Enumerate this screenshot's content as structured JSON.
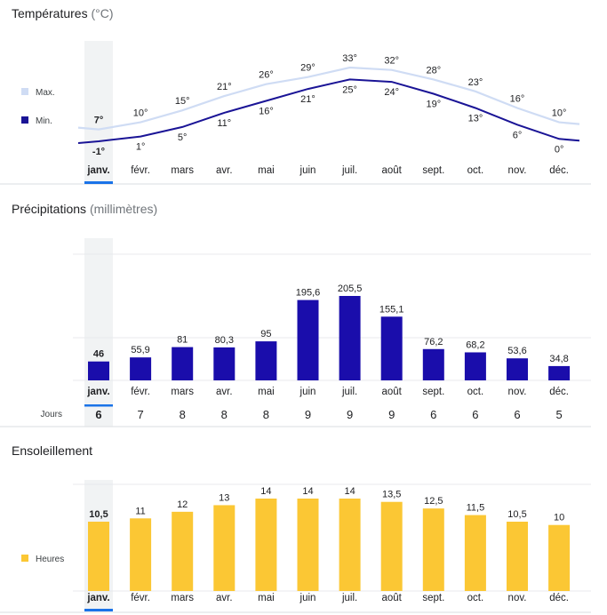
{
  "months": [
    "janv.",
    "févr.",
    "mars",
    "avr.",
    "mai",
    "juin",
    "juil.",
    "août",
    "sept.",
    "oct.",
    "nov.",
    "déc."
  ],
  "selected_month_index": 0,
  "colors": {
    "max_line": "#cfdcf4",
    "min_line": "#1a1496",
    "precip_bar": "#1a0dab",
    "sun_bar": "#fbc734",
    "selection_bg": "#f1f3f4",
    "selection_underline": "#1a73e8"
  },
  "temperature": {
    "title": "Températures",
    "unit": "(°C)",
    "legend_max": "Max.",
    "legend_min": "Min.",
    "max_labels": [
      "7°",
      "10°",
      "15°",
      "21°",
      "26°",
      "29°",
      "33°",
      "32°",
      "28°",
      "23°",
      "16°",
      "10°"
    ],
    "min_labels": [
      "-1°",
      "1°",
      "5°",
      "11°",
      "16°",
      "21°",
      "25°",
      "24°",
      "19°",
      "13°",
      "6°",
      "0°"
    ]
  },
  "precipitation": {
    "title": "Précipitations",
    "unit": "(millimètres)",
    "value_labels": [
      "46",
      "55,9",
      "81",
      "80,3",
      "95",
      "195,6",
      "205,5",
      "155,1",
      "76,2",
      "68,2",
      "53,6",
      "34,8"
    ],
    "days_label": "Jours",
    "days": [
      "6",
      "7",
      "8",
      "8",
      "8",
      "9",
      "9",
      "9",
      "6",
      "6",
      "6",
      "5"
    ]
  },
  "sunshine": {
    "title": "Ensoleillement",
    "legend": "Heures",
    "value_labels": [
      "10,5",
      "11",
      "12",
      "13",
      "14",
      "14",
      "14",
      "13,5",
      "12,5",
      "11,5",
      "10,5",
      "10"
    ]
  },
  "chart_data": [
    {
      "type": "line",
      "title": "Températures (°C)",
      "categories": [
        "janv.",
        "févr.",
        "mars",
        "avr.",
        "mai",
        "juin",
        "juil.",
        "août",
        "sept.",
        "oct.",
        "nov.",
        "déc."
      ],
      "series": [
        {
          "name": "Max.",
          "values": [
            7,
            10,
            15,
            21,
            26,
            29,
            33,
            32,
            28,
            23,
            16,
            10
          ]
        },
        {
          "name": "Min.",
          "values": [
            -1,
            1,
            5,
            11,
            16,
            21,
            25,
            24,
            19,
            13,
            6,
            0
          ]
        }
      ],
      "ylim": [
        -1,
        33
      ]
    },
    {
      "type": "bar",
      "title": "Précipitations (millimètres)",
      "categories": [
        "janv.",
        "févr.",
        "mars",
        "avr.",
        "mai",
        "juin",
        "juil.",
        "août",
        "sept.",
        "oct.",
        "nov.",
        "déc."
      ],
      "values": [
        46,
        55.9,
        81,
        80.3,
        95,
        195.6,
        205.5,
        155.1,
        76.2,
        68.2,
        53.6,
        34.8
      ],
      "ylim": [
        0,
        300
      ],
      "grid": true,
      "extra_row": {
        "name": "Jours",
        "values": [
          6,
          7,
          8,
          8,
          8,
          9,
          9,
          9,
          6,
          6,
          6,
          5
        ]
      }
    },
    {
      "type": "bar",
      "title": "Ensoleillement",
      "categories": [
        "janv.",
        "févr.",
        "mars",
        "avr.",
        "mai",
        "juin",
        "juil.",
        "août",
        "sept.",
        "oct.",
        "nov.",
        "déc."
      ],
      "series": [
        {
          "name": "Heures",
          "values": [
            10.5,
            11,
            12,
            13,
            14,
            14,
            14,
            13.5,
            12.5,
            11.5,
            10.5,
            10
          ]
        }
      ],
      "ylim": [
        0,
        14
      ],
      "grid": true
    }
  ]
}
